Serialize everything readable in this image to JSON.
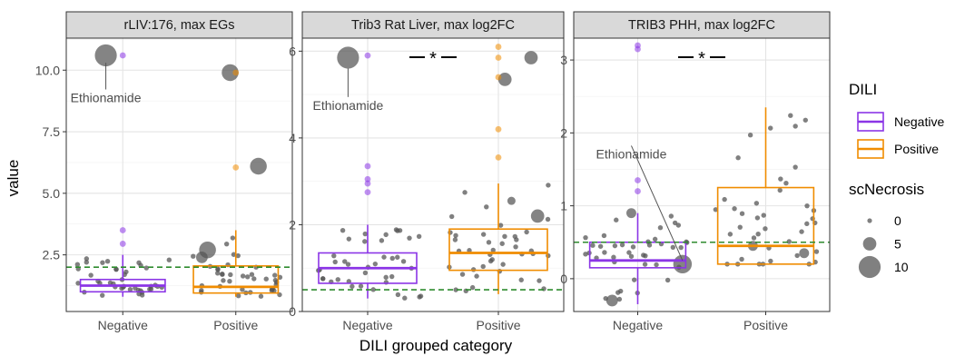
{
  "figure": {
    "ylabel": "value",
    "xlabel": "DILI grouped category"
  },
  "legend": {
    "color_title": "DILI",
    "color_items": [
      {
        "label": "Negative",
        "color": "#8B35E6"
      },
      {
        "label": "Positive",
        "color": "#F08C00"
      }
    ],
    "size_title": "scNecrosis",
    "size_items": [
      {
        "label": "0",
        "value": 0
      },
      {
        "label": "5",
        "value": 5
      },
      {
        "label": "10",
        "value": 10
      }
    ]
  },
  "colors": {
    "negative": "#8B35E6",
    "positive": "#F08C00",
    "points": "#555555",
    "threshold_line": "#2E8B2E",
    "strip_bg": "#D9D9D9"
  },
  "chart_data": [
    {
      "type": "box",
      "title": "rLIV:176, max EGs",
      "categories": [
        "Negative",
        "Positive"
      ],
      "ylim": [
        0.2,
        11.3
      ],
      "yticks": [
        2.5,
        5.0,
        7.5,
        10.0
      ],
      "ytick_labels": [
        "2.5",
        "5.0",
        "7.5",
        "10.0"
      ],
      "threshold": 2.0,
      "boxes": [
        {
          "category": "Negative",
          "min": 0.8,
          "q1": 1.0,
          "median": 1.25,
          "q3": 1.5,
          "max": 2.5
        },
        {
          "category": "Positive",
          "min": 0.8,
          "q1": 0.95,
          "median": 1.2,
          "q3": 2.05,
          "max": 3.5
        }
      ],
      "outliers": [
        {
          "category": "Negative",
          "values": [
            10.6,
            3.5,
            2.95
          ]
        },
        {
          "category": "Positive",
          "values": [
            9.9,
            6.05
          ]
        }
      ],
      "highlight_points": [
        {
          "x": 0.85,
          "y": 10.6,
          "size": 10
        },
        {
          "x": 1.95,
          "y": 9.9,
          "size": 7
        },
        {
          "x": 2.2,
          "y": 6.1,
          "size": 7
        },
        {
          "x": 1.7,
          "y": 2.4,
          "size": 4
        },
        {
          "x": 1.75,
          "y": 2.7,
          "size": 7
        }
      ],
      "annotations": [
        {
          "text": "Ethionamide",
          "x": 0.85,
          "y": 8.7,
          "point_x": 0.85,
          "point_y": 10.3
        }
      ],
      "significance": ""
    },
    {
      "type": "box",
      "title": "Trib3 Rat Liver, max log2FC",
      "categories": [
        "Negative",
        "Positive"
      ],
      "ylim": [
        0,
        6.3
      ],
      "yticks": [
        0,
        2,
        4,
        6
      ],
      "ytick_labels": [
        "0",
        "2",
        "4",
        "6"
      ],
      "threshold": 0.5,
      "boxes": [
        {
          "category": "Negative",
          "min": 0.3,
          "q1": 0.65,
          "median": 1.0,
          "q3": 1.35,
          "max": 2.0
        },
        {
          "category": "Positive",
          "min": 0.4,
          "q1": 0.95,
          "median": 1.35,
          "q3": 1.9,
          "max": 2.95
        }
      ],
      "outliers": [
        {
          "category": "Negative",
          "values": [
            5.9,
            3.35,
            3.05,
            2.95,
            2.75
          ]
        },
        {
          "category": "Positive",
          "values": [
            6.1,
            5.85,
            5.4,
            4.2,
            3.55
          ]
        }
      ],
      "highlight_points": [
        {
          "x": 0.85,
          "y": 5.85,
          "size": 10
        },
        {
          "x": 2.25,
          "y": 5.85,
          "size": 5
        },
        {
          "x": 2.05,
          "y": 5.35,
          "size": 5
        },
        {
          "x": 2.3,
          "y": 2.2,
          "size": 5
        },
        {
          "x": 2.1,
          "y": 2.55,
          "size": 2
        }
      ],
      "annotations": [
        {
          "text": "Ethionamide",
          "x": 0.85,
          "y": 4.65,
          "point_x": 0.85,
          "point_y": 5.6
        }
      ],
      "significance": "*"
    },
    {
      "type": "box",
      "title": "TRIB3 PHH, max log2FC",
      "categories": [
        "Negative",
        "Positive"
      ],
      "ylim": [
        -0.45,
        3.3
      ],
      "yticks": [
        0,
        1,
        2,
        3
      ],
      "ytick_labels": [
        "0",
        "1",
        "2",
        "3"
      ],
      "threshold": 0.5,
      "boxes": [
        {
          "category": "Negative",
          "min": -0.35,
          "q1": 0.15,
          "median": 0.25,
          "q3": 0.5,
          "max": 0.9
        },
        {
          "category": "Positive",
          "min": 0.2,
          "q1": 0.2,
          "median": 0.45,
          "q3": 1.25,
          "max": 2.35
        }
      ],
      "outliers": [
        {
          "category": "Negative",
          "values": [
            3.2,
            3.15,
            1.35,
            1.2
          ]
        },
        {
          "category": "Positive",
          "values": []
        }
      ],
      "highlight_points": [
        {
          "x": 1.35,
          "y": 0.2,
          "size": 8
        },
        {
          "x": 0.8,
          "y": -0.3,
          "size": 4
        },
        {
          "x": 0.95,
          "y": 0.9,
          "size": 3
        },
        {
          "x": 2.3,
          "y": 0.35,
          "size": 3
        },
        {
          "x": 1.9,
          "y": 0.45,
          "size": 3
        }
      ],
      "annotations": [
        {
          "text": "Ethionamide",
          "x": 0.95,
          "y": 1.65,
          "point_x": 1.35,
          "point_y": 0.25
        }
      ],
      "significance": "*"
    }
  ]
}
